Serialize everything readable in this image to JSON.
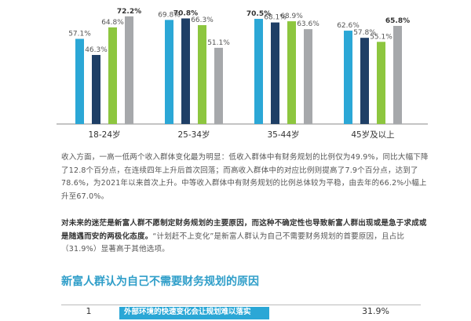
{
  "chart_data": {
    "type": "bar",
    "categories": [
      "18-24岁",
      "25-34岁",
      "35-44岁",
      "45岁及以上"
    ],
    "series": [
      {
        "values": [
          57.1,
          69.8,
          70.5,
          62.6
        ],
        "color": "#2ba7d6"
      },
      {
        "values": [
          46.3,
          70.8,
          68.1,
          57.8
        ],
        "color": "#1f3f66"
      },
      {
        "values": [
          64.8,
          66.3,
          68.9,
          55.1
        ],
        "color": "#8dc63f"
      },
      {
        "values": [
          72.2,
          51.1,
          63.6,
          65.8
        ],
        "color": "#a6a8ab"
      }
    ],
    "value_labels": [
      [
        "57.1%",
        "69.8%",
        "70.5%",
        "62.6%"
      ],
      [
        "46.3%",
        "70.8%",
        "68.1%",
        "57.8%"
      ],
      [
        "64.8%",
        "66.3%",
        "68.9%",
        "55.1%"
      ],
      [
        "72.2%",
        "51.1%",
        "63.6%",
        "65.8%"
      ]
    ],
    "ylim": [
      0,
      80
    ],
    "bold_value": "max per group"
  },
  "paragraph1": "收入方面，一高一低两个收入群体变化最为明显：低收入群体中有财务规划的比例仅为49.9%，同比大幅下降了12.8个百分点，在连续四年上升后首次回落；而高收入群体中的对应比例则提高了7.9个百分点，达到了78.6%，为2021年以来首次上升。中等收入群体中有财务规划的比例总体较为平稳，由去年的66.2%小幅上升至67.0%。",
  "paragraph2_bold": "对未来的迷茫是新富人群不愿制定财务规划的主要原因，而这种不确定性也导致新富人群出现或是急于求成或是随遇而安的两极化态度。",
  "paragraph2_rest": "“计划赶不上变化”是新富人群认为自己不需要财务规划的首要原因，且占比（31.9%）显著高于其他选项。",
  "section_title": "新富人群认为自己不需要财务规划的原因",
  "table": {
    "row1": {
      "rank": "1",
      "label": "外部环境的快速变化会让规划难以落实",
      "value": "31.9%",
      "share": 0.319
    }
  }
}
